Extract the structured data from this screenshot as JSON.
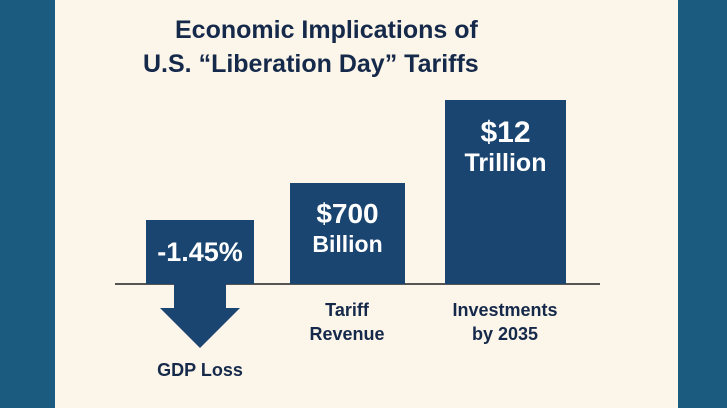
{
  "chart_data": {
    "type": "bar",
    "title": [
      "Economic Implications of",
      "U.S. “Liberation Day” Tariffs"
    ],
    "categories": [
      "GDP Loss",
      "Tariff Revenue",
      "Investments by 2035"
    ],
    "category_lines": [
      [
        "GDP Loss"
      ],
      [
        "Tariff",
        "Revenue"
      ],
      [
        "Investments",
        "by 2035"
      ]
    ],
    "data_labels": [
      [
        "-1.45%"
      ],
      [
        "$700",
        "Billion"
      ],
      [
        "$12",
        "Trillion"
      ]
    ],
    "values": [
      -1.45,
      700,
      12
    ],
    "units": [
      "% of GDP",
      "billion USD",
      "trillion USD"
    ],
    "grid": false,
    "colors": {
      "bar": "#1a4570",
      "side_panel": "#1b5b80",
      "background": "#fcf5e9",
      "text": "#15294a"
    }
  }
}
